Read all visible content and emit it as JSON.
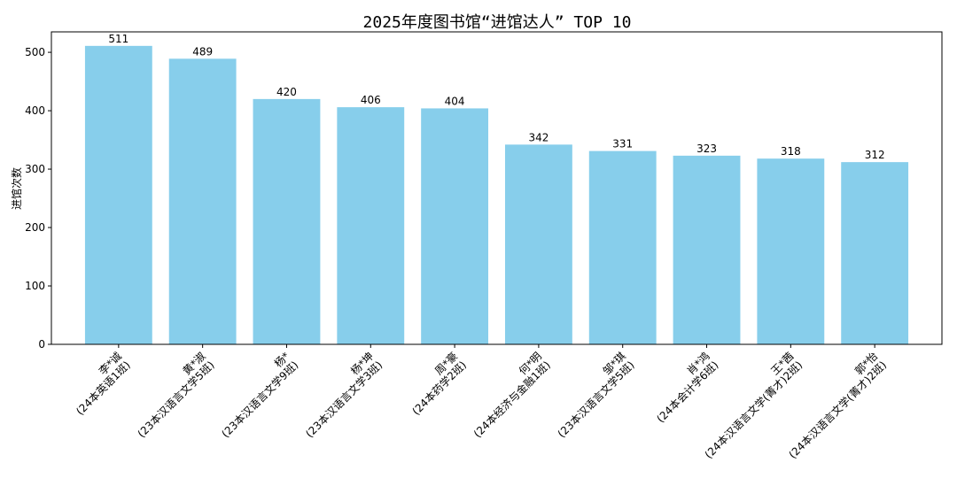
{
  "chart_data": {
    "type": "bar",
    "title": "2025年度图书馆“进馆达人” TOP 10",
    "xlabel": "",
    "ylabel": "进馆次数",
    "ylim": [
      0,
      535
    ],
    "yticks": [
      0,
      100,
      200,
      300,
      400,
      500
    ],
    "grid": false,
    "bar_color": "#87ceeb",
    "categories": [
      {
        "name": "李*诚",
        "class": "(24本英语1班)"
      },
      {
        "name": "黄*淑",
        "class": "(23本汉语言文学5班)"
      },
      {
        "name": "杨*",
        "class": "(23本汉语言文学9班)"
      },
      {
        "name": "杨*坤",
        "class": "(23本汉语言文学3班)"
      },
      {
        "name": "周*豪",
        "class": "(24本药学2班)"
      },
      {
        "name": "何*明",
        "class": "(24本经济与金融1班)"
      },
      {
        "name": "邹*琪",
        "class": "(23本汉语言文学5班)"
      },
      {
        "name": "肖*鸿",
        "class": "(24本会计学6班)"
      },
      {
        "name": "王*茜",
        "class": "(24本汉语言文学(菁才)2班)"
      },
      {
        "name": "郭*怡",
        "class": "(24本汉语言文学(菁才)2班)"
      }
    ],
    "values": [
      511,
      489,
      420,
      406,
      404,
      342,
      331,
      323,
      318,
      312
    ]
  }
}
